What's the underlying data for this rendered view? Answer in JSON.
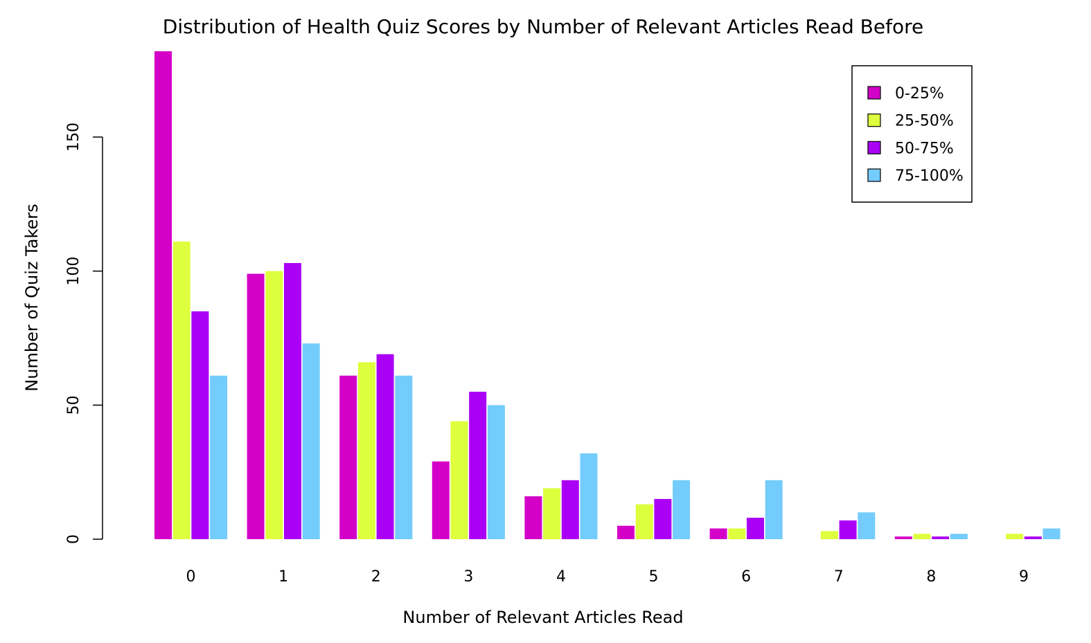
{
  "chart_data": {
    "type": "bar",
    "title": "Distribution of Health Quiz Scores by Number of Relevant Articles Read Before",
    "xlabel": "Number of Relevant Articles Read",
    "ylabel": "Number of Quiz Takers",
    "categories": [
      "0",
      "1",
      "2",
      "3",
      "4",
      "5",
      "6",
      "7",
      "8",
      "9"
    ],
    "ylim": [
      0,
      182
    ],
    "yticks": [
      0,
      50,
      100,
      150
    ],
    "grid": false,
    "legend_position": "top-right",
    "series": [
      {
        "name": "0-25%",
        "color": "#D400C8",
        "values": [
          182,
          99,
          61,
          29,
          16,
          5,
          4,
          0,
          1,
          0
        ]
      },
      {
        "name": "25-50%",
        "color": "#DDFF3D",
        "values": [
          111,
          100,
          66,
          44,
          19,
          13,
          4,
          3,
          2,
          2
        ]
      },
      {
        "name": "50-75%",
        "color": "#AA00F5",
        "values": [
          85,
          103,
          69,
          55,
          22,
          15,
          8,
          7,
          1,
          1
        ]
      },
      {
        "name": "75-100%",
        "color": "#73CCFB",
        "values": [
          61,
          73,
          61,
          50,
          32,
          22,
          22,
          10,
          2,
          4
        ]
      }
    ]
  }
}
